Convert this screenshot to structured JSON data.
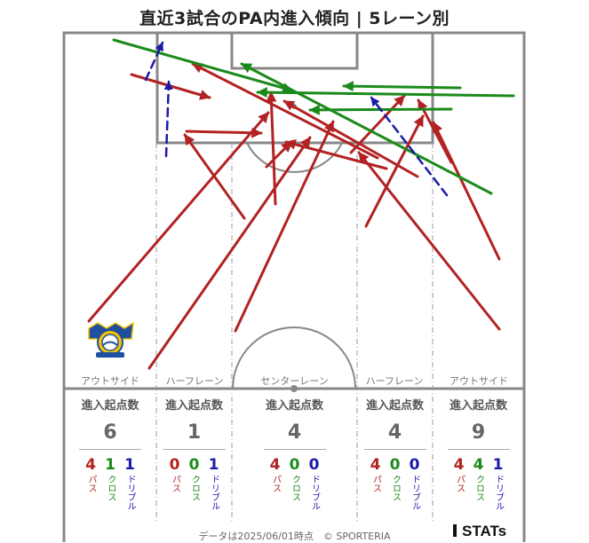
{
  "title": "直近3試合のPA内進入傾向 | 5レーン別",
  "colors": {
    "pass": "#b22222",
    "cross": "#1a8a1a",
    "dribble": "#1a1aa8",
    "line": "#888888"
  },
  "lanes": [
    {
      "label": "アウトサイド",
      "heading": "進入起点数",
      "total": "6",
      "pass": "4",
      "cross": "1",
      "dribble": "1"
    },
    {
      "label": "ハーフレーン",
      "heading": "進入起点数",
      "total": "1",
      "pass": "0",
      "cross": "0",
      "dribble": "1"
    },
    {
      "label": "センターレーン",
      "heading": "進入起点数",
      "total": "4",
      "pass": "4",
      "cross": "0",
      "dribble": "0"
    },
    {
      "label": "ハーフレーン",
      "heading": "進入起点数",
      "total": "4",
      "pass": "4",
      "cross": "0",
      "dribble": "0"
    },
    {
      "label": "アウトサイド",
      "heading": "進入起点数",
      "total": "9",
      "pass": "4",
      "cross": "4",
      "dribble": "1"
    }
  ],
  "breakdown_labels": {
    "pass": "パス",
    "cross": "クロス",
    "dribble": "ドリブル"
  },
  "footer": "データは2025/06/01時点　© SPORTERIA",
  "brand": "STATs",
  "chart_data": {
    "type": "scatter",
    "title": "直近3試合のPA内進入傾向 | 5レーン別",
    "lanes": [
      "アウトサイド",
      "ハーフレーン",
      "センターレーン",
      "ハーフレーン",
      "アウトサイド"
    ],
    "entries": [
      {
        "kind": "pass",
        "from": [
          100,
          362
        ],
        "to": [
          302,
          127
        ]
      },
      {
        "kind": "pass",
        "from": [
          168,
          415
        ],
        "to": [
          349,
          155
        ]
      },
      {
        "kind": "pass",
        "from": [
          265,
          373
        ],
        "to": [
          375,
          137
        ]
      },
      {
        "kind": "pass",
        "from": [
          275,
          246
        ],
        "to": [
          208,
          152
        ]
      },
      {
        "kind": "pass",
        "from": [
          310,
          230
        ],
        "to": [
          305,
          104
        ]
      },
      {
        "kind": "pass",
        "from": [
          300,
          188
        ],
        "to": [
          328,
          160
        ]
      },
      {
        "kind": "pass",
        "from": [
          210,
          148
        ],
        "to": [
          294,
          150
        ]
      },
      {
        "kind": "pass",
        "from": [
          148,
          84
        ],
        "to": [
          236,
          110
        ]
      },
      {
        "kind": "pass",
        "from": [
          425,
          178
        ],
        "to": [
          217,
          72
        ]
      },
      {
        "kind": "pass",
        "from": [
          470,
          199
        ],
        "to": [
          320,
          114
        ]
      },
      {
        "kind": "pass",
        "from": [
          395,
          172
        ],
        "to": [
          455,
          108
        ]
      },
      {
        "kind": "pass",
        "from": [
          435,
          190
        ],
        "to": [
          322,
          160
        ]
      },
      {
        "kind": "pass",
        "from": [
          412,
          255
        ],
        "to": [
          476,
          131
        ]
      },
      {
        "kind": "pass",
        "from": [
          562,
          371
        ],
        "to": [
          404,
          172
        ]
      },
      {
        "kind": "pass",
        "from": [
          562,
          292
        ],
        "to": [
          488,
          138
        ]
      },
      {
        "kind": "pass",
        "from": [
          508,
          183
        ],
        "to": [
          471,
          113
        ]
      },
      {
        "kind": "cross",
        "from": [
          128,
          45
        ],
        "to": [
          329,
          102
        ]
      },
      {
        "kind": "cross",
        "from": [
          578,
          108
        ],
        "to": [
          290,
          104
        ]
      },
      {
        "kind": "cross",
        "from": [
          518,
          99
        ],
        "to": [
          387,
          97
        ]
      },
      {
        "kind": "cross",
        "from": [
          553,
          218
        ],
        "to": [
          272,
          72
        ]
      },
      {
        "kind": "cross",
        "from": [
          508,
          123
        ],
        "to": [
          349,
          124
        ]
      },
      {
        "kind": "dribble",
        "from": [
          164,
          90
        ],
        "to": [
          183,
          48
        ]
      },
      {
        "kind": "dribble",
        "from": [
          187,
          176
        ],
        "to": [
          190,
          92
        ]
      },
      {
        "kind": "dribble",
        "from": [
          503,
          220
        ],
        "to": [
          418,
          110
        ]
      }
    ]
  }
}
